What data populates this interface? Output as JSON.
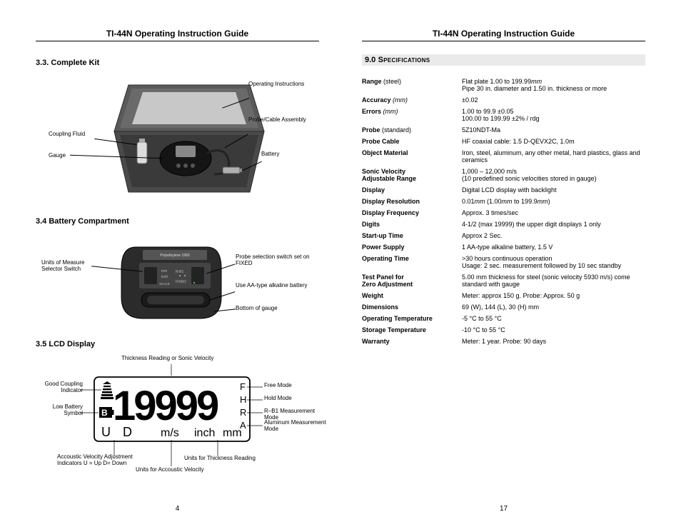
{
  "header_title": "TI-44N Operating Instruction Guide",
  "left": {
    "sec33_title": "3.3. Complete Kit",
    "sec34_title": "3.4 Battery Compartment",
    "sec35_title": "3.5   LCD Display",
    "kit_labels": {
      "operating_instructions": "Operating Instructions",
      "probe_cable": "Probe/Cable Assembly",
      "battery": "Battery",
      "coupling_fluid": "Coupling Fluid",
      "gauge": "Gauge"
    },
    "batt_labels": {
      "units_switch": "Units of Measure Selector Switch",
      "probe_switch": "Probe selection switch set on FIXED",
      "aa_battery": "Use AA-type alkaline battery",
      "bottom": "Bottom of gauge",
      "poly_label": "Polyethylene    1960",
      "mm": "mm",
      "inch": "inch",
      "scale": "SCALE",
      "rb1": "R-B1",
      "fixed": "FIXED"
    },
    "lcd": {
      "top_label": "Thickness Reading or Sonic Velocity",
      "good_coupling": "Good Coupling Indicator",
      "low_battery": "Low Battery Symbol",
      "free": "Free Mode",
      "hold": "Hold Mode",
      "rb1_mode": "R–B1 Measurement Mode",
      "aluminum": "Aluminum Measurement Mode",
      "acoustic_adj": "Accoustic Velocity Adjustment Indicators U = Up  D= Down",
      "units_acoustic": "Units for Accoustic Velocity",
      "units_thickness": "Units for Thickness Reading",
      "digits": "19999",
      "B": "B",
      "U": "U",
      "D": "D",
      "ms": "m/s",
      "inch": "inch",
      "mm": "mm",
      "F": "F",
      "H": "H",
      "R": "R",
      "A": "A"
    },
    "page_number": "4"
  },
  "right": {
    "spec_heading_num": "9.0",
    "spec_heading_title": "  Specifications",
    "page_number": "17",
    "specs": [
      {
        "label": "Range",
        "sub": " (steel)",
        "value": "Flat plate 1.00 to 199.99<span class='italic'>mm</span><br>Pipe 30 in. diameter and 1.50 in. thickness or more"
      },
      {
        "label": "Accuracy",
        "sub": " (mm)",
        "subiItalic": true,
        "value": "±0.02"
      },
      {
        "label": "Errors",
        "sub": " (mm)",
        "subiItalic": true,
        "value": "1.00 to 99.9 ±0.05<br>100.00 to 199.99 ±2% / rdg"
      },
      {
        "label": "Probe",
        "sub": " (standard)",
        "value": "5Z10NDT-Ma"
      },
      {
        "label": "Probe Cable",
        "value": "HF coaxial cable: 1.5 D-QEVX2C, 1.0m"
      },
      {
        "label": "Object Material",
        "value": "Iron, steel, aluminum, any other metal, hard plastics, glass and ceramics"
      },
      {
        "label": "Sonic Velocity<br>Adjustable Range",
        "value": "1,000 – 12,000 m/s<br>(10 predefined sonic velocities stored in gauge)"
      },
      {
        "label": "Display",
        "value": "Digital LCD display with backlight"
      },
      {
        "label": "Display Resolution",
        "value": "0.01<span class='italic'>mm</span> (1.00<span class='italic'>mm</span> to 199.9<span class='italic'>mm</span>)"
      },
      {
        "label": "Display Frequency",
        "value": "Approx. 3 times/sec"
      },
      {
        "label": "Digits",
        "value": "4-1/2 (max 19999) the upper digit displays 1 only"
      },
      {
        "label": "Start-up Time",
        "value": "Approx 2 Sec."
      },
      {
        "label": "Power Supply",
        "value": "1 AA-type alkaline battery, 1.5 V"
      },
      {
        "label": "Operating Time",
        "value": ">30 hours continuous operation<br>Usage: 2 sec. measurement followed by 10 sec standby"
      },
      {
        "label": "Test Panel for<br>Zero Adjustment",
        "value": "5.00 mm thickness for steel (sonic velocity 5930 m/s) come standard with gauge"
      },
      {
        "label": "Weight",
        "value": "Meter: approx 150 g. Probe: Approx. 50 g"
      },
      {
        "label": "Dimensions",
        "value": "69 (W), 144 (L), 30 (H) mm"
      },
      {
        "label": "Operating Temperature",
        "value": "-5 °C to 55 °C"
      },
      {
        "label": "Storage Temperature",
        "value": "-10 °C to 55 °C"
      },
      {
        "label": "Warranty",
        "value": "Meter: 1 year. Probe: 90 days"
      }
    ]
  },
  "colors": {
    "box_dark": "#3b3b3b",
    "box_mid": "#5a5a5a",
    "box_light": "#787878",
    "gauge": "#1c1c1c",
    "lcd_stroke": "#000000"
  }
}
